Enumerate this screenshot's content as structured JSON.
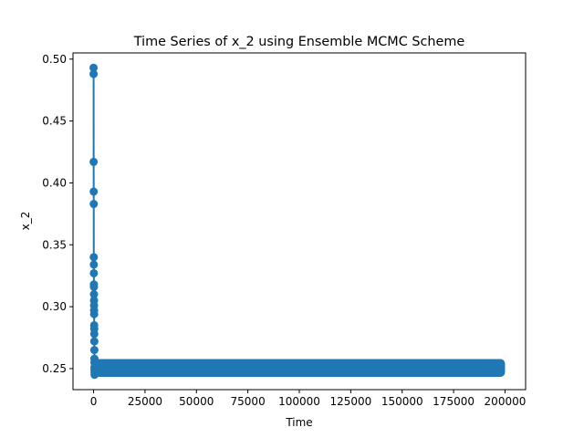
{
  "chart_data": {
    "type": "line",
    "title": "Time Series of x_2 using Ensemble MCMC Scheme",
    "xlabel": "Time",
    "ylabel": "x_2",
    "xlim": [
      -10000,
      210000
    ],
    "ylim": [
      0.233,
      0.505
    ],
    "x_ticks": [
      0,
      25000,
      50000,
      75000,
      100000,
      125000,
      150000,
      175000,
      200000
    ],
    "y_ticks": [
      0.25,
      0.3,
      0.35,
      0.4,
      0.45,
      0.5
    ],
    "y_tick_labels": [
      "0.25",
      "0.30",
      "0.35",
      "0.40",
      "0.45",
      "0.50"
    ],
    "grid": false,
    "legend": false,
    "series_color": "#1f77b4",
    "marker": "circle",
    "burn_in_values": [
      0.493,
      0.488,
      0.417,
      0.393,
      0.383,
      0.34,
      0.334,
      0.327,
      0.318,
      0.316,
      0.31,
      0.305,
      0.301,
      0.297,
      0.294,
      0.285,
      0.282,
      0.278,
      0.272,
      0.265,
      0.258,
      0.255,
      0.251,
      0.249,
      0.247,
      0.245
    ],
    "burn_in_x_end": 500,
    "steady_range": [
      0.247,
      0.254
    ],
    "steady_x_range": [
      500,
      200000
    ]
  }
}
